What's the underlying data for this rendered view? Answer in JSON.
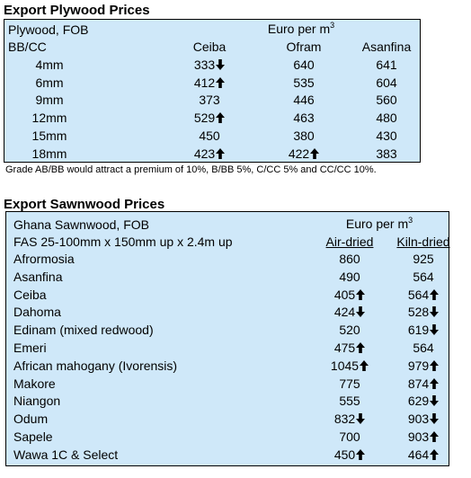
{
  "plywood": {
    "title": "Export Plywood Prices",
    "label1": "Plywood, FOB",
    "label2": "BB/CC",
    "unit": "Euro per m",
    "unit_sup": "3",
    "columns": [
      "Ceiba",
      "Ofram",
      "Asanfina"
    ],
    "rows": [
      {
        "size": "4mm",
        "cells": [
          {
            "v": "333",
            "t": "down"
          },
          {
            "v": "640",
            "t": ""
          },
          {
            "v": "641",
            "t": ""
          }
        ]
      },
      {
        "size": "6mm",
        "cells": [
          {
            "v": "412",
            "t": "up"
          },
          {
            "v": "535",
            "t": ""
          },
          {
            "v": "604",
            "t": ""
          }
        ]
      },
      {
        "size": "9mm",
        "cells": [
          {
            "v": "373",
            "t": ""
          },
          {
            "v": "446",
            "t": ""
          },
          {
            "v": "560",
            "t": ""
          }
        ]
      },
      {
        "size": "12mm",
        "cells": [
          {
            "v": "529",
            "t": "up"
          },
          {
            "v": "463",
            "t": ""
          },
          {
            "v": "480",
            "t": ""
          }
        ]
      },
      {
        "size": "15mm",
        "cells": [
          {
            "v": "450",
            "t": ""
          },
          {
            "v": "380",
            "t": ""
          },
          {
            "v": "430",
            "t": ""
          }
        ]
      },
      {
        "size": "18mm",
        "cells": [
          {
            "v": "423",
            "t": "up"
          },
          {
            "v": "422",
            "t": "up"
          },
          {
            "v": "383",
            "t": ""
          }
        ]
      }
    ],
    "note": "Grade AB/BB would attract a premium of 10%, B/BB 5%, C/CC 5% and CC/CC 10%."
  },
  "sawnwood": {
    "title": "Export Sawnwood Prices",
    "label1": "Ghana Sawnwood, FOB",
    "label2": "FAS 25-100mm x 150mm up x 2.4m up",
    "unit": "Euro per m",
    "unit_sup": "3",
    "columns": [
      "Air-dried",
      "Kiln-dried"
    ],
    "rows": [
      {
        "name": "Afrormosia",
        "cells": [
          {
            "v": "860",
            "t": ""
          },
          {
            "v": "925",
            "t": ""
          }
        ]
      },
      {
        "name": "Asanfina",
        "cells": [
          {
            "v": "490",
            "t": ""
          },
          {
            "v": "564",
            "t": ""
          }
        ]
      },
      {
        "name": "Ceiba",
        "cells": [
          {
            "v": "405",
            "t": "up"
          },
          {
            "v": "564",
            "t": "up"
          }
        ]
      },
      {
        "name": "Dahoma",
        "cells": [
          {
            "v": "424",
            "t": "down"
          },
          {
            "v": "528",
            "t": "down"
          }
        ]
      },
      {
        "name": "Edinam (mixed redwood)",
        "cells": [
          {
            "v": "520",
            "t": ""
          },
          {
            "v": "619",
            "t": "down"
          }
        ]
      },
      {
        "name": "Emeri",
        "cells": [
          {
            "v": "475",
            "t": "up"
          },
          {
            "v": "564",
            "t": ""
          }
        ]
      },
      {
        "name": "African mahogany (Ivorensis)",
        "cells": [
          {
            "v": "1045",
            "t": "up"
          },
          {
            "v": "979",
            "t": "up"
          }
        ]
      },
      {
        "name": "Makore",
        "cells": [
          {
            "v": "775",
            "t": ""
          },
          {
            "v": "874",
            "t": "up"
          }
        ]
      },
      {
        "name": "Niangon",
        "cells": [
          {
            "v": "555",
            "t": ""
          },
          {
            "v": "629",
            "t": "down"
          }
        ]
      },
      {
        "name": "Odum",
        "cells": [
          {
            "v": "832",
            "t": "down"
          },
          {
            "v": "903",
            "t": "down"
          }
        ]
      },
      {
        "name": "Sapele",
        "cells": [
          {
            "v": "700",
            "t": ""
          },
          {
            "v": "903",
            "t": "up"
          }
        ]
      },
      {
        "name": "Wawa 1C & Select",
        "cells": [
          {
            "v": "450",
            "t": "up"
          },
          {
            "v": "464",
            "t": "up"
          }
        ]
      }
    ]
  },
  "icons": {
    "up": "arrow-up-icon",
    "down": "arrow-down-icon"
  },
  "colors": {
    "panel": "#cfe8f9",
    "border": "#000000"
  }
}
